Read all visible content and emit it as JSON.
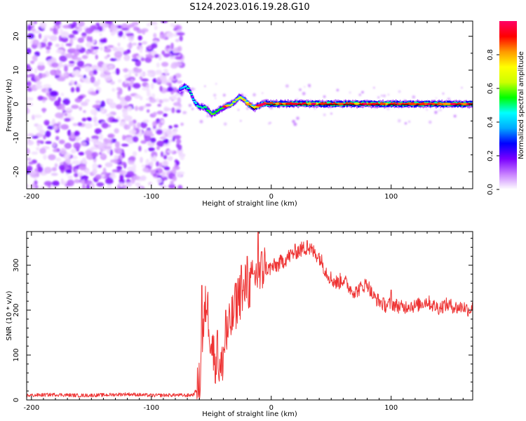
{
  "figure": {
    "title": "S124.2023.016.19.28.G10"
  },
  "chart_data": [
    {
      "type": "heatmap",
      "xlabel": "Height of straight line (km)",
      "ylabel": "Frequency (Hz)",
      "xlim": [
        -204,
        168
      ],
      "ylim": [
        -25,
        24.5
      ],
      "x_ticks": [
        -200,
        -100,
        0,
        100
      ],
      "x_tick_labels": [
        "-200",
        "-100",
        "0",
        "100"
      ],
      "y_ticks": [
        -20,
        -10,
        0,
        10,
        20
      ],
      "y_tick_labels": [
        "-20",
        "-10",
        "0",
        "10",
        "20"
      ],
      "colorbar": {
        "label": "Normalized spectral amplitude",
        "range": [
          0,
          1
        ],
        "ticks": [
          0,
          0.2,
          0.4,
          0.6,
          0.8
        ],
        "tick_labels": [
          "0.0",
          "0.2",
          "0.4",
          "0.6",
          "0.8"
        ],
        "colors": [
          "#ffffff",
          "#c880ff",
          "#7a00ff",
          "#0000ff",
          "#00aaff",
          "#00ffff",
          "#00ff00",
          "#ccff00",
          "#ffff00",
          "#ff9900",
          "#ff0000",
          "#ff0066"
        ]
      },
      "noise_region": {
        "x_range": [
          -204,
          -74
        ],
        "y_range": [
          -25,
          24.5
        ],
        "amplitude_range": [
          0.02,
          0.2
        ]
      },
      "ridge": [
        {
          "x": -76,
          "y": 4.5,
          "amp": 0.35
        },
        {
          "x": -72,
          "y": 5.2,
          "amp": 0.45
        },
        {
          "x": -68,
          "y": 4.2,
          "amp": 0.5
        },
        {
          "x": -64,
          "y": 0.5,
          "amp": 0.45
        },
        {
          "x": -60,
          "y": -0.8,
          "amp": 0.5
        },
        {
          "x": -55,
          "y": -1.0,
          "amp": 0.5
        },
        {
          "x": -50,
          "y": -3.0,
          "amp": 0.6
        },
        {
          "x": -46,
          "y": -2.4,
          "amp": 0.55
        },
        {
          "x": -42,
          "y": -1.4,
          "amp": 0.55
        },
        {
          "x": -38,
          "y": -0.6,
          "amp": 0.6
        },
        {
          "x": -34,
          "y": -0.2,
          "amp": 0.65
        },
        {
          "x": -30,
          "y": 0.8,
          "amp": 0.65
        },
        {
          "x": -26,
          "y": 2.2,
          "amp": 0.7
        },
        {
          "x": -22,
          "y": 1.0,
          "amp": 0.7
        },
        {
          "x": -18,
          "y": -0.3,
          "amp": 0.75
        },
        {
          "x": -14,
          "y": -1.2,
          "amp": 0.75
        },
        {
          "x": -10,
          "y": -0.4,
          "amp": 0.8
        },
        {
          "x": -5,
          "y": 0.2,
          "amp": 0.85
        },
        {
          "x": 0,
          "y": 0.1,
          "amp": 0.9
        },
        {
          "x": 168,
          "y": 0.0,
          "amp": 0.9
        }
      ]
    },
    {
      "type": "line",
      "xlabel": "Height of straight line (km)",
      "ylabel": "SNR (10 * v/v)",
      "xlim": [
        -204,
        168
      ],
      "ylim": [
        0,
        375
      ],
      "x_ticks": [
        -200,
        -100,
        0,
        100
      ],
      "x_tick_labels": [
        "-200",
        "-100",
        "0",
        "100"
      ],
      "y_ticks": [
        0,
        100,
        200,
        300
      ],
      "y_tick_labels": [
        "0",
        "100",
        "200",
        "300"
      ],
      "color": "#ee3333",
      "x": [
        -204,
        -180,
        -160,
        -140,
        -120,
        -100,
        -80,
        -70,
        -65,
        -60,
        -57,
        -54,
        -51,
        -48,
        -45,
        -42,
        -39,
        -36,
        -33,
        -30,
        -27,
        -24,
        -21,
        -18,
        -15,
        -12,
        -9,
        -6,
        -3,
        0,
        5,
        10,
        15,
        20,
        25,
        30,
        35,
        40,
        45,
        50,
        55,
        60,
        65,
        70,
        75,
        80,
        85,
        90,
        95,
        100,
        105,
        110,
        115,
        120,
        125,
        130,
        135,
        140,
        145,
        150,
        155,
        160,
        165,
        168
      ],
      "y": [
        10,
        12,
        10,
        11,
        13,
        10,
        11,
        10,
        12,
        30,
        140,
        230,
        150,
        100,
        80,
        60,
        120,
        150,
        180,
        200,
        240,
        220,
        260,
        250,
        270,
        280,
        270,
        300,
        290,
        295,
        300,
        310,
        320,
        330,
        335,
        340,
        330,
        320,
        290,
        270,
        260,
        270,
        250,
        240,
        250,
        260,
        230,
        220,
        210,
        215,
        210,
        205,
        212,
        208,
        215,
        220,
        210,
        205,
        212,
        210,
        205,
        208,
        200,
        205
      ],
      "spikes": [
        {
          "x": -58,
          "y": 255
        },
        {
          "x": -54,
          "y": 200
        },
        {
          "x": -45,
          "y": 155
        },
        {
          "x": -38,
          "y": 200
        },
        {
          "x": -30,
          "y": 260
        },
        {
          "x": -25,
          "y": 300
        },
        {
          "x": -20,
          "y": 320
        },
        {
          "x": -15,
          "y": 280
        },
        {
          "x": -11,
          "y": 375
        },
        {
          "x": -8,
          "y": 330
        },
        {
          "x": 30,
          "y": 355
        },
        {
          "x": 100,
          "y": 245
        }
      ]
    }
  ]
}
